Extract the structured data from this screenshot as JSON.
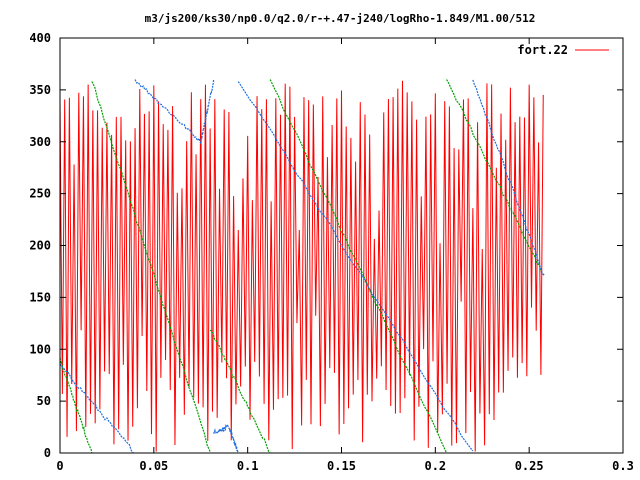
{
  "chart_data": {
    "type": "line",
    "title": "m3/js200/ks30/np0.0/q2.0/r-+.47-j240/logRho-1.849/M1.00/512",
    "xlim": [
      0,
      0.3
    ],
    "ylim": [
      0,
      400
    ],
    "x_ticks": [
      "0",
      "0.05",
      "0.1",
      "0.15",
      "0.2",
      "0.25",
      "0.3"
    ],
    "y_ticks": [
      "0",
      "50",
      "100",
      "150",
      "200",
      "250",
      "300",
      "350",
      "400"
    ],
    "legend_position": "top-right",
    "grid": false,
    "series": [
      {
        "name": "fort.22",
        "color": "#ff0000",
        "style": "oscillating",
        "x_range": [
          0,
          0.258
        ],
        "oscillation_period": 0.0025,
        "y_min_range": [
          0,
          90
        ],
        "y_max_range": [
          300,
          360
        ]
      },
      {
        "color": "#00a000",
        "style": "sawtooth",
        "segments": [
          {
            "x": [
              0.0,
              0.017
            ],
            "y": [
              90,
              0
            ]
          },
          {
            "x": [
              0.017,
              0.08
            ],
            "y": [
              360,
              0
            ]
          },
          {
            "x": [
              0.08,
              0.112
            ],
            "y": [
              120,
              0
            ]
          },
          {
            "x": [
              0.112,
              0.206
            ],
            "y": [
              360,
              0
            ]
          },
          {
            "x": [
              0.206,
              0.258
            ],
            "y": [
              360,
              170
            ]
          }
        ]
      },
      {
        "color": "#1e6fe0",
        "style": "sawtooth",
        "segments": [
          {
            "x": [
              0.0,
              0.04
            ],
            "y": [
              85,
              0
            ]
          },
          {
            "x": [
              0.04,
              0.075
            ],
            "y": [
              360,
              300
            ]
          },
          {
            "x": [
              0.075,
              0.082
            ],
            "y": [
              300,
              360
            ]
          },
          {
            "x": [
              0.095,
              0.22
            ],
            "y": [
              360,
              0
            ]
          },
          {
            "x": [
              0.22,
              0.258
            ],
            "y": [
              360,
              170
            ]
          },
          {
            "x": [
              0.082,
              0.09
            ],
            "y": [
              20,
              25
            ]
          },
          {
            "x": [
              0.09,
              0.095
            ],
            "y": [
              25,
              0
            ]
          }
        ]
      }
    ]
  }
}
